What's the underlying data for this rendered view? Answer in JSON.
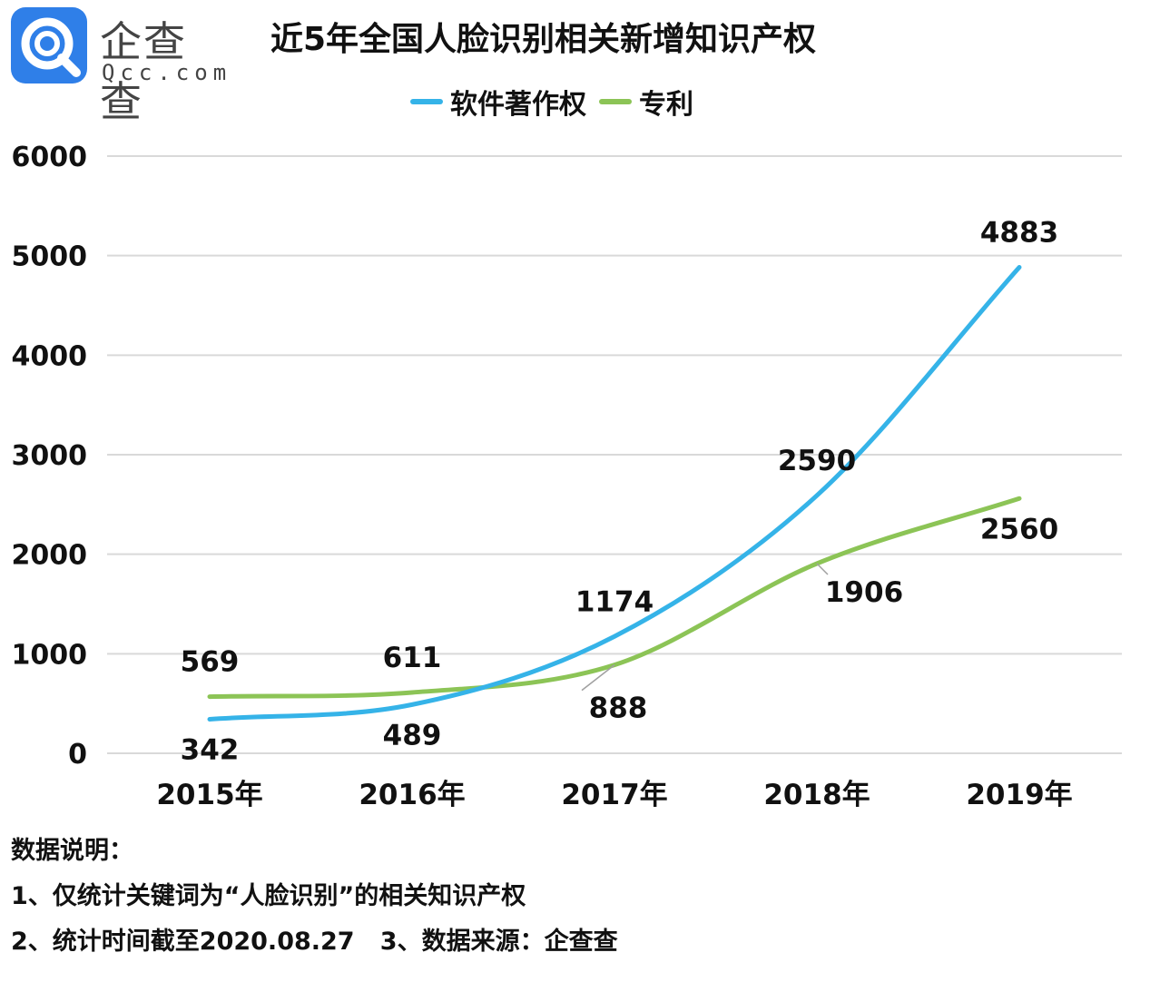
{
  "brand": {
    "name_cn": "企查查",
    "name_en": "Qcc.com",
    "logo_color": "#2f7fe8"
  },
  "title": "近5年全国人脸识别相关新增知识产权",
  "chart_data": {
    "type": "line",
    "categories": [
      "2015年",
      "2016年",
      "2017年",
      "2018年",
      "2019年"
    ],
    "series": [
      {
        "name": "软件著作权",
        "color": "#35b3e8",
        "values": [
          342,
          489,
          1174,
          2590,
          4883
        ]
      },
      {
        "name": "专利",
        "color": "#8cc456",
        "values": [
          569,
          611,
          888,
          1906,
          2560
        ]
      }
    ],
    "ylim": [
      0,
      6000
    ],
    "yticks": [
      0,
      1000,
      2000,
      3000,
      4000,
      5000,
      6000
    ],
    "grid": true,
    "legend_position": "top-center",
    "smooth": true
  },
  "notes": [
    "数据说明：",
    "1、仅统计关键词为“人脸识别”的相关知识产权",
    "2、统计时间截至2020.08.27   3、数据来源：企查查"
  ]
}
